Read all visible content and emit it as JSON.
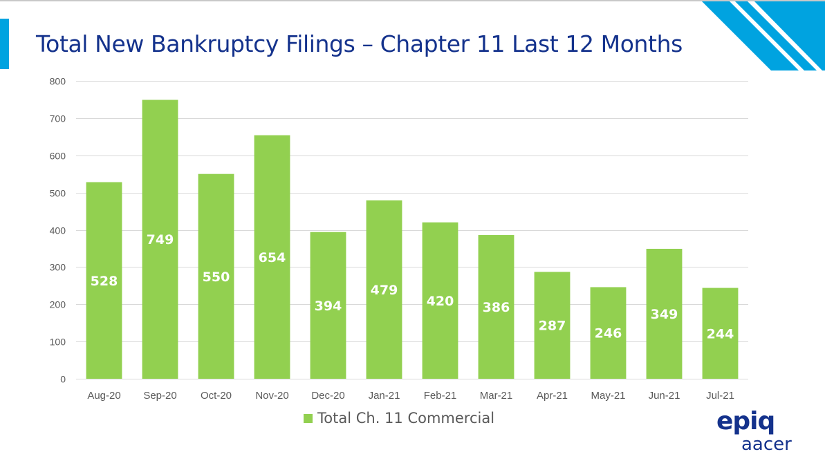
{
  "slide": {
    "title": "Total New Bankruptcy Filings – Chapter 11 Last 12 Months"
  },
  "logo": {
    "primary": "epiq",
    "secondary": "aacer"
  },
  "colors": {
    "bar": "#92d050",
    "title": "#14328c",
    "accent": "#00a3e0",
    "gridline": "#d9d9d9",
    "axis_text": "#595959"
  },
  "chart_data": {
    "type": "bar",
    "title": "Total New Bankruptcy Filings – Chapter 11 Last 12 Months",
    "categories": [
      "Aug-20",
      "Sep-20",
      "Oct-20",
      "Nov-20",
      "Dec-20",
      "Jan-21",
      "Feb-21",
      "Mar-21",
      "Apr-21",
      "May-21",
      "Jun-21",
      "Jul-21"
    ],
    "series": [
      {
        "name": "Total Ch. 11 Commercial",
        "values": [
          528,
          749,
          550,
          654,
          394,
          479,
          420,
          386,
          287,
          246,
          349,
          244
        ]
      }
    ],
    "ylim": [
      0,
      800
    ],
    "yticks": [
      0,
      100,
      200,
      300,
      400,
      500,
      600,
      700,
      800
    ],
    "grid": true,
    "legend_position": "bottom",
    "data_labels": true
  }
}
